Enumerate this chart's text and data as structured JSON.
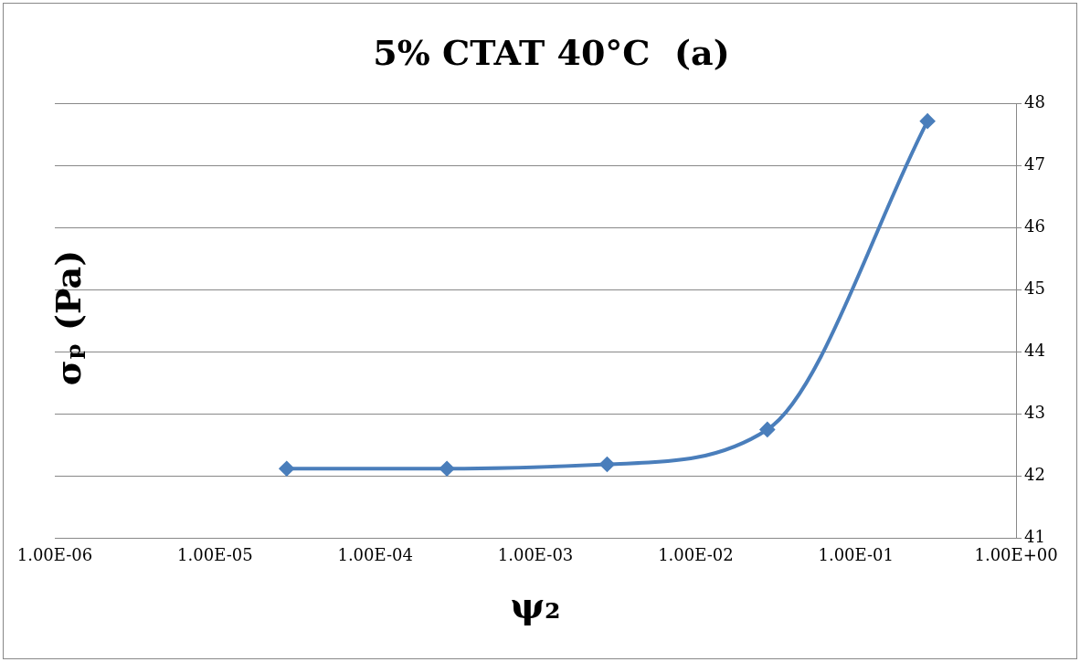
{
  "chart_data": {
    "type": "line",
    "title": "5% CTAT 40°C  (a)",
    "xlabel": "ψ₂",
    "ylabel": "σₚ (Pa)",
    "x": [
      2.8e-05,
      0.00028,
      0.0028,
      0.028,
      0.28
    ],
    "series": [
      {
        "color": "#4a7ebb",
        "values": [
          42.12,
          42.12,
          42.19,
          42.75,
          47.72
        ]
      }
    ],
    "log": "x",
    "xlim": [
      1e-06,
      1
    ],
    "xticks": [
      {
        "value": 1e-06,
        "label": "1.00E-06"
      },
      {
        "value": 1e-05,
        "label": "1.00E-05"
      },
      {
        "value": 0.0001,
        "label": "1.00E-04"
      },
      {
        "value": 0.001,
        "label": "1.00E-03"
      },
      {
        "value": 0.01,
        "label": "1.00E-02"
      },
      {
        "value": 0.1,
        "label": "1.00E-01"
      },
      {
        "value": 1,
        "label": "1.00E+00"
      }
    ],
    "ylim": [
      41,
      48
    ],
    "yticks": [
      41,
      42,
      43,
      44,
      45,
      46,
      47,
      48
    ],
    "grid": "y",
    "legend": false,
    "marker": "diamond",
    "line_style": "solid"
  }
}
